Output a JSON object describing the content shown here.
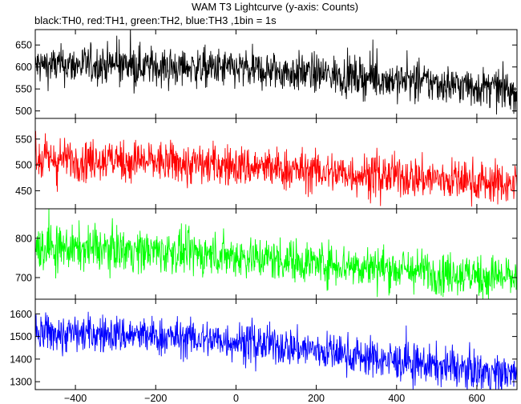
{
  "title": "WAM T3 Lightcurve (y-axis: Counts)",
  "subtitle": "black:TH0, red:TH1, green:TH2, blue:TH3 ,1bin = 1s",
  "chart_data": [
    {
      "type": "line",
      "name": "TH0",
      "color": "#000000",
      "xlim": [
        -500,
        700
      ],
      "ylim": [
        483,
        685
      ],
      "xticks": [
        -400,
        -200,
        0,
        200,
        400,
        600
      ],
      "yticks": [
        500,
        550,
        600,
        650
      ],
      "trend": {
        "x": [
          -500,
          -300,
          0,
          200,
          400,
          600,
          700
        ],
        "y": [
          603,
          605,
          595,
          585,
          570,
          555,
          545
        ]
      },
      "noise_amplitude": 22,
      "grid": false
    },
    {
      "type": "line",
      "name": "TH1",
      "color": "#ff0000",
      "xlim": [
        -500,
        700
      ],
      "ylim": [
        415,
        590
      ],
      "xticks": [
        -400,
        -200,
        0,
        200,
        400,
        600
      ],
      "yticks": [
        450,
        500,
        550
      ],
      "trend": {
        "x": [
          -500,
          -300,
          0,
          200,
          400,
          600,
          700
        ],
        "y": [
          510,
          510,
          498,
          487,
          478,
          468,
          462
        ]
      },
      "noise_amplitude": 20,
      "grid": false
    },
    {
      "type": "line",
      "name": "TH2",
      "color": "#00ff00",
      "xlim": [
        -500,
        700
      ],
      "ylim": [
        645,
        875
      ],
      "xticks": [
        -400,
        -200,
        0,
        200,
        400,
        600
      ],
      "yticks": [
        700,
        800
      ],
      "trend": {
        "x": [
          -500,
          -300,
          0,
          200,
          400,
          600,
          700
        ],
        "y": [
          775,
          773,
          755,
          738,
          722,
          705,
          700
        ]
      },
      "noise_amplitude": 27,
      "grid": false
    },
    {
      "type": "line",
      "name": "TH3",
      "color": "#0000ff",
      "xlim": [
        -500,
        700
      ],
      "ylim": [
        1265,
        1665
      ],
      "xticks": [
        -400,
        -200,
        0,
        200,
        400,
        600
      ],
      "yticks": [
        1300,
        1400,
        1500,
        1600
      ],
      "trend": {
        "x": [
          -500,
          -300,
          0,
          200,
          400,
          600,
          700
        ],
        "y": [
          1515,
          1510,
          1480,
          1440,
          1390,
          1350,
          1330
        ]
      },
      "noise_amplitude": 42,
      "grid": false
    }
  ]
}
